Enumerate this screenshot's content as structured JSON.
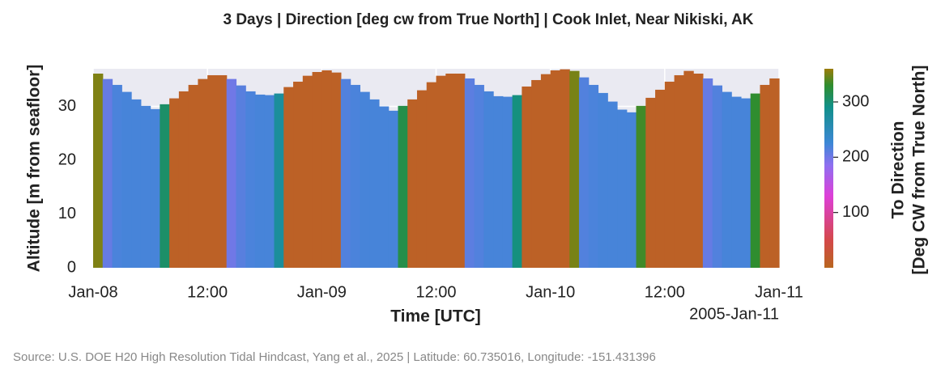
{
  "chart_data": {
    "type": "heatmap",
    "title": "3 Days | Direction [deg cw from True North] | Cook Inlet, Near Nikiski, AK",
    "xlabel": "Time [UTC]",
    "ylabel": "Altitude [m from seafloor]",
    "colorbar_label": [
      "To Direction",
      "[Deg CW from True North]"
    ],
    "date_annotation": "2005-Jan-11",
    "source": "Source: U.S. DOE H20 High Resolution Tidal Hindcast, Yang et al., 2025  |  Latitude: 60.735016, Longitude: -151.431396",
    "x": [
      0,
      1,
      2,
      3,
      4,
      5,
      6,
      7,
      8,
      9,
      10,
      11,
      12,
      13,
      14,
      15,
      16,
      17,
      18,
      19,
      20,
      21,
      22,
      23,
      24,
      25,
      26,
      27,
      28,
      29,
      30,
      31,
      32,
      33,
      34,
      35,
      36,
      37,
      38,
      39,
      40,
      41,
      42,
      43,
      44,
      45,
      46,
      47,
      48,
      49,
      50,
      51,
      52,
      53,
      54,
      55,
      56,
      57,
      58,
      59,
      60,
      61,
      62,
      63,
      64,
      65,
      66,
      67,
      68,
      69,
      70,
      71
    ],
    "surface": [
      36.1,
      35.1,
      34.0,
      32.7,
      31.3,
      30.1,
      29.5,
      30.4,
      31.5,
      32.8,
      34.0,
      35.1,
      35.8,
      35.8,
      35.1,
      33.9,
      32.8,
      32.2,
      32.1,
      32.4,
      33.6,
      34.6,
      35.7,
      36.4,
      36.7,
      36.3,
      35.1,
      34.0,
      32.7,
      31.3,
      30.0,
      29.2,
      30.1,
      31.3,
      33.0,
      34.5,
      35.7,
      36.1,
      36.1,
      35.2,
      34.0,
      32.8,
      31.9,
      31.8,
      32.1,
      33.7,
      34.9,
      36.0,
      36.7,
      36.9,
      36.6,
      35.4,
      34.0,
      32.5,
      30.9,
      29.4,
      28.9,
      30.1,
      31.6,
      33.1,
      34.6,
      35.8,
      36.6,
      36.1,
      35.2,
      33.9,
      32.7,
      31.8,
      31.5,
      32.4,
      34.0,
      35.2
    ],
    "direction": [
      352,
      205,
      218,
      220,
      220,
      220,
      220,
      305,
      8,
      8,
      8,
      8,
      8,
      8,
      200,
      212,
      218,
      220,
      220,
      275,
      8,
      8,
      8,
      8,
      8,
      8,
      215,
      218,
      220,
      220,
      220,
      220,
      318,
      8,
      8,
      8,
      8,
      8,
      8,
      210,
      215,
      220,
      220,
      220,
      295,
      8,
      8,
      8,
      8,
      8,
      350,
      215,
      218,
      220,
      220,
      220,
      220,
      335,
      8,
      8,
      8,
      8,
      8,
      8,
      205,
      215,
      220,
      220,
      220,
      330,
      8,
      8
    ],
    "xlim": [
      0,
      72
    ],
    "xticks": [
      {
        "value": 0,
        "label": "Jan-08"
      },
      {
        "value": 12,
        "label": "12:00"
      },
      {
        "value": 24,
        "label": "Jan-09"
      },
      {
        "value": 36,
        "label": "12:00"
      },
      {
        "value": 48,
        "label": "Jan-10"
      },
      {
        "value": 60,
        "label": "12:00"
      },
      {
        "value": 72,
        "label": "Jan-11"
      }
    ],
    "ylim": [
      0,
      37
    ],
    "yticks": [
      0,
      10,
      20,
      30
    ],
    "clim": [
      0,
      360
    ],
    "cticks": [
      100,
      200,
      300
    ],
    "colormap": [
      [
        0,
        "#b8661f"
      ],
      [
        50,
        "#d4484a"
      ],
      [
        130,
        "#dd3fd8"
      ],
      [
        185,
        "#8f6ff0"
      ],
      [
        225,
        "#3d87d6"
      ],
      [
        290,
        "#11908a"
      ],
      [
        330,
        "#2f8d2f"
      ],
      [
        360,
        "#9c7c0a"
      ]
    ],
    "grid": true
  }
}
